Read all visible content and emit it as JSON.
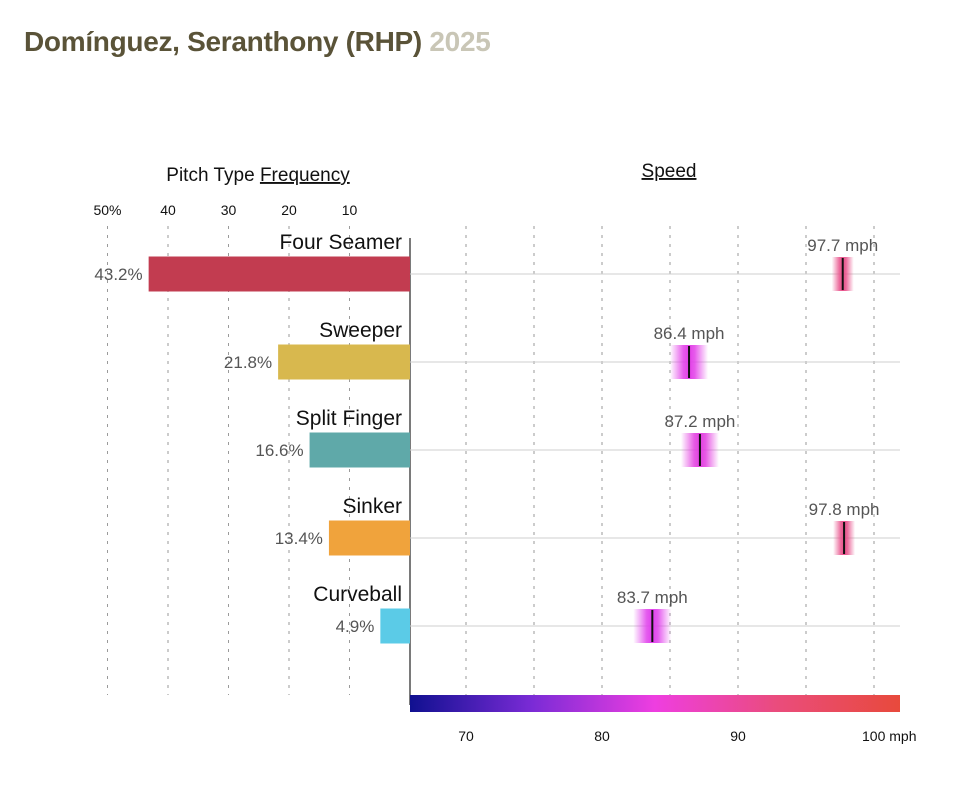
{
  "header": {
    "title": "Domínguez, Seranthony (RHP)",
    "year": "2025"
  },
  "chart_data": {
    "type": "bar",
    "frequency_panel": {
      "title_prefix": "Pitch Type ",
      "title_underlined": "Frequency",
      "xlim": [
        0,
        50
      ],
      "ticks": [
        50,
        40,
        30,
        20,
        10
      ],
      "tick_labels": [
        "50%",
        "40",
        "30",
        "20",
        "10"
      ]
    },
    "speed_panel": {
      "title": "Speed",
      "xlim": [
        66,
        102
      ],
      "gridlines": [
        66,
        70,
        75,
        80,
        85,
        90,
        95,
        100
      ],
      "ticks": [
        70,
        80,
        90,
        100
      ],
      "tick_labels": [
        "70",
        "80",
        "90",
        "100 mph"
      ],
      "colorscale": [
        "#101090",
        "#7b2bd6",
        "#ee3ee0",
        "#ea4c7c",
        "#e84a3c"
      ]
    },
    "pitches": [
      {
        "name": "Four Seamer",
        "frequency": 43.2,
        "frequency_label": "43.2%",
        "speed": 97.7,
        "speed_label": "97.7 mph",
        "color": "#c23c50",
        "speed_color": "#e8508a"
      },
      {
        "name": "Sweeper",
        "frequency": 21.8,
        "frequency_label": "21.8%",
        "speed": 86.4,
        "speed_label": "86.4 mph",
        "color": "#d8b84e",
        "speed_color": "#e23ee8"
      },
      {
        "name": "Split Finger",
        "frequency": 16.6,
        "frequency_label": "16.6%",
        "speed": 87.2,
        "speed_label": "87.2 mph",
        "color": "#5fa9a9",
        "speed_color": "#e23ee0"
      },
      {
        "name": "Sinker",
        "frequency": 13.4,
        "frequency_label": "13.4%",
        "speed": 97.8,
        "speed_label": "97.8 mph",
        "color": "#f0a33c",
        "speed_color": "#e8508a"
      },
      {
        "name": "Curveball",
        "frequency": 4.9,
        "frequency_label": "4.9%",
        "speed": 83.7,
        "speed_label": "83.7 mph",
        "color": "#5bcbe7",
        "speed_color": "#e040ec"
      }
    ]
  }
}
